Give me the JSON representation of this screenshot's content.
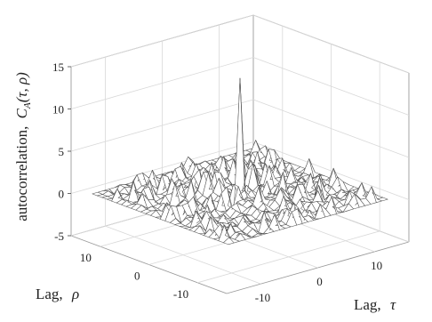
{
  "chart_data": {
    "type": "surface",
    "title": "",
    "xlabel": {
      "text": "Lag,",
      "symbol": "τ"
    },
    "ylabel": {
      "text": "Lag,",
      "symbol": "ρ"
    },
    "zlabel": {
      "text": "autocorrelation,",
      "symbol": "C",
      "subscript": "A",
      "args": "(τ, ρ)"
    },
    "xlim": [
      -16,
      16
    ],
    "ylim": [
      -16,
      16
    ],
    "zlim": [
      -5,
      15
    ],
    "x_ticks": [
      {
        "v": -10,
        "label": "-10"
      },
      {
        "v": 0,
        "label": "0"
      },
      {
        "v": 10,
        "label": "10"
      }
    ],
    "y_ticks": [
      {
        "v": -10,
        "label": "-10"
      },
      {
        "v": 0,
        "label": "0"
      },
      {
        "v": 10,
        "label": "10"
      }
    ],
    "z_ticks": [
      {
        "v": -5,
        "label": "-5"
      },
      {
        "v": 0,
        "label": "0"
      },
      {
        "v": 5,
        "label": "5"
      },
      {
        "v": 10,
        "label": "10"
      },
      {
        "v": 15,
        "label": "15"
      }
    ],
    "grid": true,
    "peak": {
      "x": 0,
      "y": 0,
      "z": 14
    },
    "sidelobe_amplitude": 1.5,
    "grid_range": [
      -14,
      14
    ],
    "face_color": "#ffffff",
    "edge_color": "#555555"
  }
}
